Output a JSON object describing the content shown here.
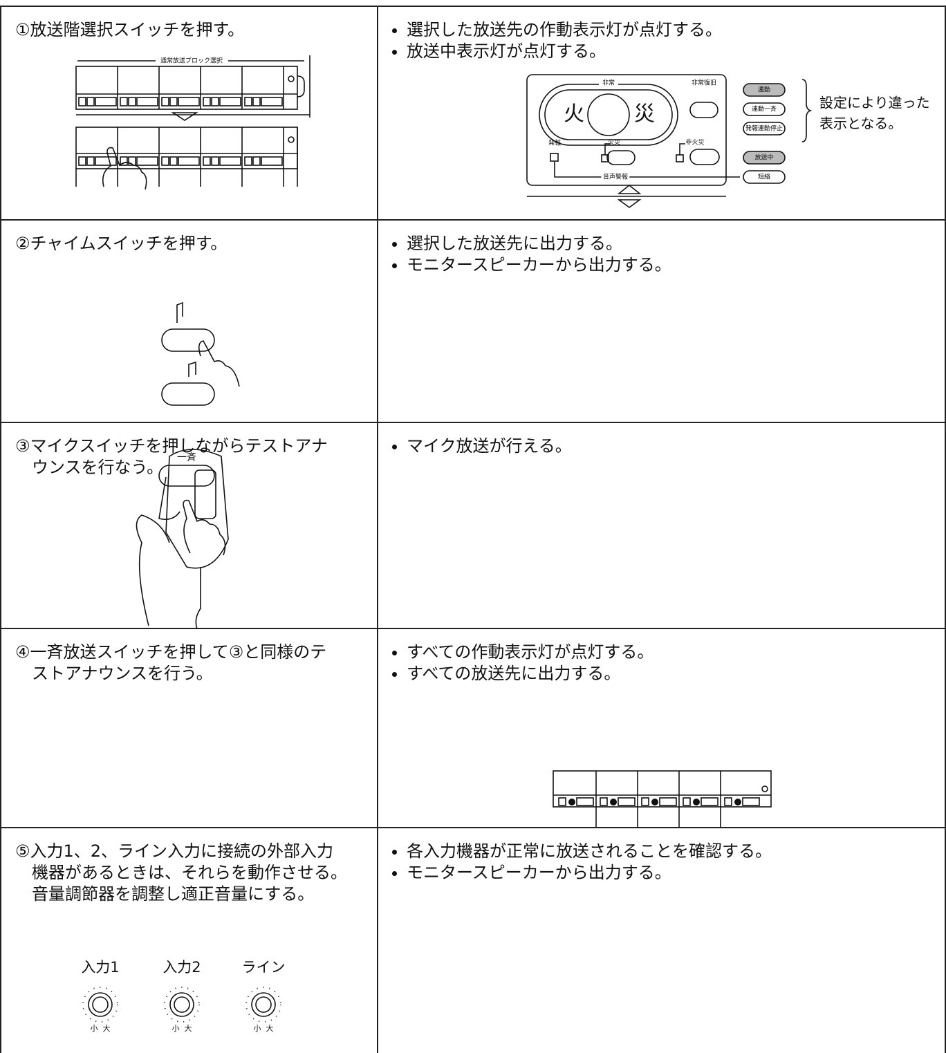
{
  "rows": [
    {
      "step": [
        "①放送階選択スイッチを押す。"
      ],
      "results": [
        "選択した放送先の作動表示灯が点灯する。",
        "放送中表示灯が点灯する。"
      ]
    },
    {
      "step": [
        "②チャイムスイッチを押す。"
      ],
      "results": [
        "選択した放送先に出力する。",
        "モニタースピーカーから出力する。"
      ]
    },
    {
      "step": [
        "③マイクスイッチを押しながらテストアナ",
        "ウンスを行なう。"
      ],
      "results": [
        "マイク放送が行える。"
      ]
    },
    {
      "step": [
        "④一斉放送スイッチを押して③と同様のテ",
        "ストアナウンスを行う。"
      ],
      "results": [
        "すべての作動表示灯が点灯する。",
        "すべての放送先に出力する。"
      ]
    },
    {
      "step": [
        "⑤入力1、2、ライン入力に接続の外部入力",
        "機器があるときは、それらを動作させる。",
        "音量調節器を調整し適正音量にする。"
      ],
      "results": [
        "各入力機器が正常に放送されることを確認する。",
        "モニタースピーカーから出力する。"
      ]
    }
  ],
  "illustrations": {
    "block_select_label": "通常放送ブロック選択",
    "panel": {
      "emergency": "非常",
      "fire_left": "火",
      "fire_right": "災",
      "reset": "非常復旧",
      "buttons": [
        "連動",
        "連動一斉",
        "発報連動停止",
        "放送中",
        "短絡"
      ],
      "alarm": "発報",
      "fire": "火災",
      "non_fire": "非火災",
      "voice_alarm": "音声警報"
    },
    "note": [
      "設定により違った",
      "表示となる。"
    ],
    "all_call": "一斉",
    "knobs": [
      "入力1",
      "入力2",
      "ライン"
    ],
    "knob_min": "小",
    "knob_max": "大"
  }
}
